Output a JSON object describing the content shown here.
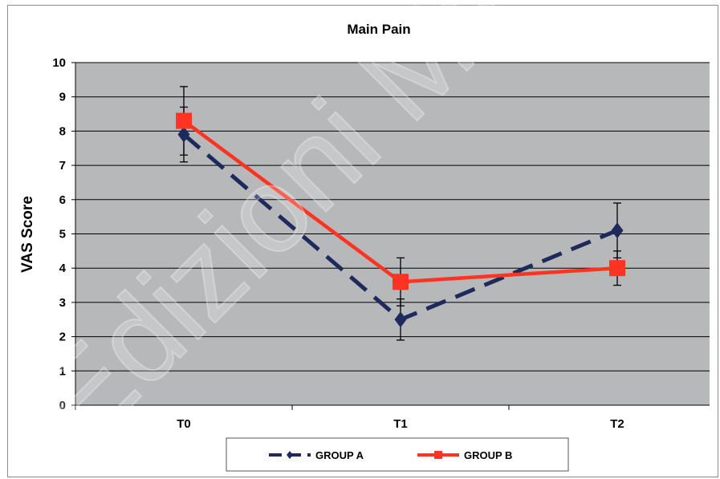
{
  "chart_data": {
    "type": "line",
    "title": "Main Pain",
    "xlabel": "",
    "ylabel": "VAS Score",
    "categories": [
      "T0",
      "T1",
      "T2"
    ],
    "ylim": [
      0,
      10
    ],
    "yticks": [
      "0",
      "1",
      "2",
      "3",
      "4",
      "5",
      "6",
      "7",
      "8",
      "9",
      "10"
    ],
    "grid": true,
    "legend_position": "bottom",
    "series": [
      {
        "name": "GROUP A",
        "values": [
          7.9,
          2.5,
          5.1
        ],
        "error_low": [
          7.1,
          1.9,
          4.3
        ],
        "error_high": [
          8.7,
          3.1,
          5.9
        ],
        "color": "#1f2a5c",
        "line_style": "dashed",
        "marker": "diamond"
      },
      {
        "name": "GROUP B",
        "values": [
          8.3,
          3.6,
          4.0
        ],
        "error_low": [
          7.3,
          2.9,
          3.5
        ],
        "error_high": [
          9.3,
          4.3,
          4.5
        ],
        "color": "#ff3322",
        "line_style": "solid",
        "marker": "square"
      }
    ],
    "colors": {
      "plot_background": "#b7b8ba",
      "grid": "#000000"
    }
  }
}
